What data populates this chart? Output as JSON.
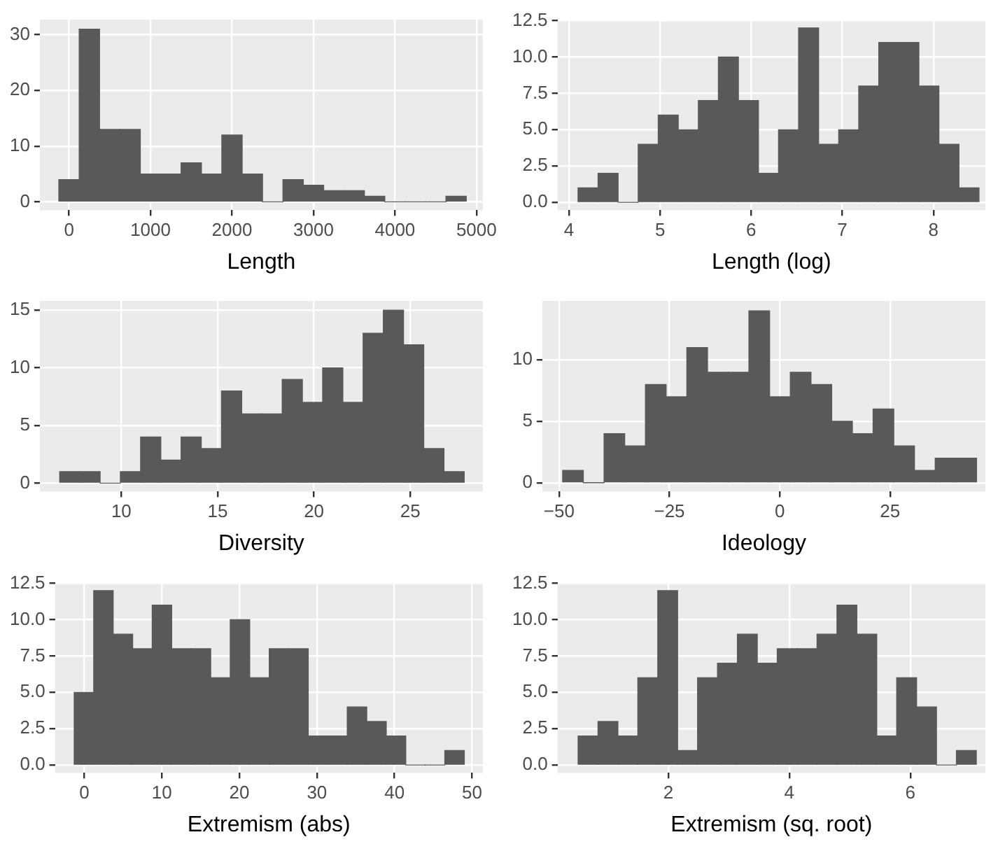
{
  "chart_data": [
    {
      "type": "histogram",
      "xlabel": "Length",
      "bins": [
        -125,
        125,
        375,
        625,
        875,
        1125,
        1375,
        1625,
        1875,
        2125,
        2375,
        2625,
        2875,
        3125,
        3375,
        3625,
        3875,
        4125,
        4375,
        4625,
        4875
      ],
      "values": [
        4,
        31,
        13,
        13,
        5,
        5,
        7,
        5,
        12,
        5,
        0,
        4,
        3,
        2,
        2,
        1,
        0,
        0,
        0,
        1
      ],
      "color": "#595959",
      "xlim": [
        -358,
        5079
      ],
      "xticks": [
        0,
        1000,
        2000,
        3000,
        4000,
        5000
      ],
      "ylim": [
        -1.5,
        32.7
      ],
      "yticks": [
        0,
        10,
        20,
        30
      ],
      "grid": true
    },
    {
      "type": "histogram",
      "xlabel": "Length (log)",
      "bins": [
        4.1,
        4.32,
        4.54,
        4.76,
        4.98,
        5.2,
        5.42,
        5.64,
        5.86,
        6.08,
        6.3,
        6.52,
        6.74,
        6.96,
        7.18,
        7.4,
        7.62,
        7.84,
        8.06,
        8.28,
        8.5
      ],
      "values": [
        1,
        2,
        0,
        4,
        6,
        5,
        7,
        10,
        7,
        2,
        5,
        12,
        4,
        5,
        8,
        11,
        11,
        8,
        4,
        1
      ],
      "color": "#595959",
      "xlim": [
        3.875,
        8.57
      ],
      "xticks": [
        4,
        5,
        6,
        7,
        8
      ],
      "ylim": [
        -0.54,
        12.57
      ],
      "yticks": [
        {
          "value": 0,
          "label": "0.0"
        },
        {
          "value": 2.5,
          "label": "2.5"
        },
        {
          "value": 5,
          "label": "5.0"
        },
        {
          "value": 7.5,
          "label": "7.5"
        },
        {
          "value": 10,
          "label": "10.0"
        },
        {
          "value": 12.5,
          "label": "12.5"
        }
      ],
      "grid": true
    },
    {
      "type": "histogram",
      "xlabel": "Diversity",
      "bins": [
        6.8,
        7.85,
        8.9,
        9.95,
        11,
        12.05,
        13.1,
        14.15,
        15.2,
        16.25,
        17.3,
        18.35,
        19.4,
        20.45,
        21.5,
        22.55,
        23.6,
        24.65,
        25.7,
        26.75,
        27.8
      ],
      "values": [
        1,
        1,
        0,
        1,
        4,
        2,
        4,
        3,
        8,
        6,
        6,
        9,
        7,
        10,
        7,
        13,
        15,
        12,
        3,
        1
      ],
      "color": "#595959",
      "xlim": [
        5.77,
        28.77
      ],
      "xticks": [
        10,
        15,
        20,
        25
      ],
      "ylim": [
        -0.73,
        15.8
      ],
      "yticks": [
        0,
        5,
        10,
        15
      ],
      "grid": true
    },
    {
      "type": "histogram",
      "xlabel": "Ideology",
      "bins": [
        -49.2,
        -44.51,
        -39.82,
        -35.13,
        -30.44,
        -25.75,
        -21.06,
        -16.37,
        -11.68,
        -6.99,
        -2.3,
        2.39,
        7.08,
        11.77,
        16.46,
        21.15,
        25.84,
        30.53,
        35.22,
        39.91,
        44.6
      ],
      "values": [
        1,
        0,
        4,
        3,
        8,
        7,
        11,
        9,
        9,
        14,
        7,
        9,
        8,
        5,
        4,
        6,
        3,
        1,
        2,
        2
      ],
      "color": "#595959",
      "xlim": [
        -53.8,
        46.6
      ],
      "xticks": [
        {
          "value": -50,
          "label": "−50"
        },
        {
          "value": -25,
          "label": "−25"
        },
        0,
        25
      ],
      "ylim": [
        -0.72,
        14.8
      ],
      "yticks": [
        0,
        5,
        10
      ],
      "grid": true
    },
    {
      "type": "histogram",
      "xlabel": "Extremism (abs)",
      "bins": [
        -1.3,
        1.215,
        3.73,
        6.245,
        8.76,
        11.275,
        13.79,
        16.305,
        18.82,
        21.335,
        23.85,
        26.365,
        28.88,
        31.395,
        33.91,
        36.425,
        38.94,
        41.455,
        43.97,
        46.485,
        49
      ],
      "values": [
        5,
        12,
        9,
        8,
        11,
        8,
        8,
        6,
        10,
        6,
        8,
        8,
        2,
        2,
        4,
        3,
        2,
        0,
        0,
        1
      ],
      "color": "#595959",
      "xlim": [
        -3.77,
        51.4
      ],
      "xticks": [
        0,
        10,
        20,
        30,
        40,
        50
      ],
      "ylim": [
        -0.54,
        12.57
      ],
      "yticks": [
        {
          "value": 0,
          "label": "0.0"
        },
        {
          "value": 2.5,
          "label": "2.5"
        },
        {
          "value": 5,
          "label": "5.0"
        },
        {
          "value": 7.5,
          "label": "7.5"
        },
        {
          "value": 10,
          "label": "10.0"
        },
        {
          "value": 12.5,
          "label": "12.5"
        }
      ],
      "grid": true
    },
    {
      "type": "histogram",
      "xlabel": "Extremism (sq. root)",
      "bins": [
        0.51,
        0.839,
        1.168,
        1.497,
        1.826,
        2.155,
        2.484,
        2.813,
        3.142,
        3.471,
        3.8,
        4.129,
        4.458,
        4.787,
        5.116,
        5.445,
        5.774,
        6.103,
        6.432,
        6.761,
        7.09
      ],
      "values": [
        2,
        3,
        2,
        6,
        12,
        1,
        6,
        7,
        9,
        7,
        8,
        8,
        9,
        11,
        9,
        2,
        6,
        4,
        0,
        1
      ],
      "color": "#595959",
      "xlim": [
        0.17,
        7.24
      ],
      "xticks": [
        2,
        4,
        6
      ],
      "ylim": [
        -0.54,
        12.57
      ],
      "yticks": [
        {
          "value": 0,
          "label": "0.0"
        },
        {
          "value": 2.5,
          "label": "2.5"
        },
        {
          "value": 5,
          "label": "5.0"
        },
        {
          "value": 7.5,
          "label": "7.5"
        },
        {
          "value": 10,
          "label": "10.0"
        },
        {
          "value": 12.5,
          "label": "12.5"
        }
      ],
      "grid": true
    }
  ]
}
